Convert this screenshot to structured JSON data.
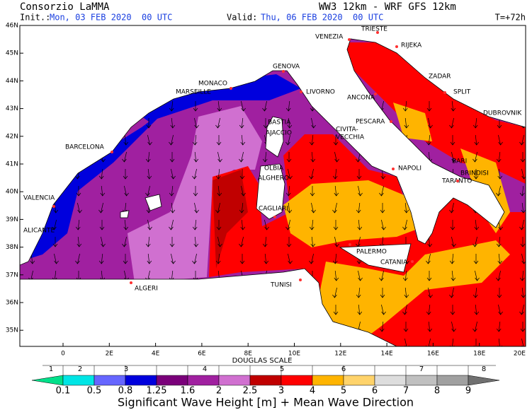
{
  "header": {
    "title": "Consorzio LaMMA",
    "model": "WW3 12km - WRF GFS 12km",
    "init_label": "Init.:",
    "init_value": "Mon, 03 FEB 2020  00 UTC",
    "valid_label": "Valid:",
    "valid_value": "Thu, 06 FEB 2020  00 UTC",
    "forecast": "T=+72h"
  },
  "map": {
    "lat_labels": [
      "46N",
      "45N",
      "44N",
      "43N",
      "42N",
      "41N",
      "40N",
      "39N",
      "38N",
      "37N",
      "36N",
      "35N"
    ],
    "lon_labels": [
      "0",
      "2E",
      "4E",
      "6E",
      "8E",
      "10E",
      "12E",
      "14E",
      "16E",
      "18E",
      "20E"
    ],
    "cities": [
      "VENEZIA",
      "TRIESTE",
      "RIJEKA",
      "ZADAR",
      "SPLIT",
      "DUBROVNIK",
      "GENOVA",
      "MONACO",
      "MARSEILLE",
      "LIVORNO",
      "ANCONA",
      "PESCARA",
      "BASTIA",
      "AJACCIO",
      "CIVITA-",
      "VECCHIA",
      "BARCELONA",
      "NAPOLI",
      "BARI",
      "BRINDISI",
      "TARANTO",
      "OLBIA",
      "ALGHERO",
      "VALENCIA",
      "CAGLIARI",
      "ALICANTE",
      "PALERMO",
      "CATANIA",
      "TUNISI",
      "ALGERI"
    ]
  },
  "legend": {
    "scale_title": "DOUGLAS SCALE",
    "douglas": [
      "1",
      "2",
      "3",
      "4",
      "5",
      "6",
      "7",
      "8"
    ],
    "values": [
      "0.1",
      "0.5",
      "0.8",
      "1.25",
      "1.6",
      "2",
      "2.5",
      "3",
      "4",
      "5",
      "6",
      "7",
      "8",
      "9"
    ],
    "colors": [
      "#00e08a",
      "#00e5e5",
      "#6666ff",
      "#0000dd",
      "#7a007a",
      "#a020a0",
      "#d070d0",
      "#c00000",
      "#ff0000",
      "#ffb400",
      "#ffd36b",
      "#dddddd",
      "#c0c0c0",
      "#a0a0a0",
      "#707070"
    ],
    "caption": "Significant Wave Height [m] + Mean Wave Direction"
  }
}
